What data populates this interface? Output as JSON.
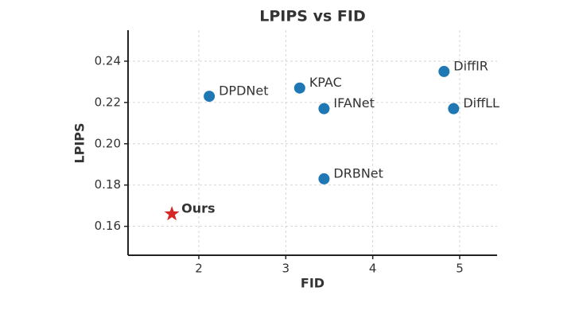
{
  "chart_data": {
    "type": "scatter",
    "title": "LPIPS vs FID",
    "x_label": "FID",
    "y_label": "LPIPS",
    "points": [
      {
        "label": "DPDNet",
        "x": 2.12,
        "y": 0.223,
        "marker": "circle",
        "color": "#1f77b4"
      },
      {
        "label": "KPAC",
        "x": 3.16,
        "y": 0.227,
        "marker": "circle",
        "color": "#1f77b4"
      },
      {
        "label": "IFANet",
        "x": 3.44,
        "y": 0.217,
        "marker": "circle",
        "color": "#1f77b4"
      },
      {
        "label": "DiffIR",
        "x": 4.82,
        "y": 0.235,
        "marker": "circle",
        "color": "#1f77b4"
      },
      {
        "label": "DiffLL",
        "x": 4.93,
        "y": 0.217,
        "marker": "circle",
        "color": "#1f77b4"
      },
      {
        "label": "DRBNet",
        "x": 3.44,
        "y": 0.183,
        "marker": "circle",
        "color": "#1f77b4"
      },
      {
        "label": "Ours",
        "x": 1.69,
        "y": 0.166,
        "marker": "star",
        "color": "#d62728",
        "bold": true
      }
    ],
    "xlim": [
      1.186,
      5.43
    ],
    "ylim": [
      0.146,
      0.255
    ],
    "xticks": [
      2,
      3,
      4,
      5
    ],
    "yticks": [
      0.16,
      0.18,
      {
        "value": 0.2,
        "label": "0.20"
      },
      0.22,
      0.24
    ],
    "grid": true
  }
}
